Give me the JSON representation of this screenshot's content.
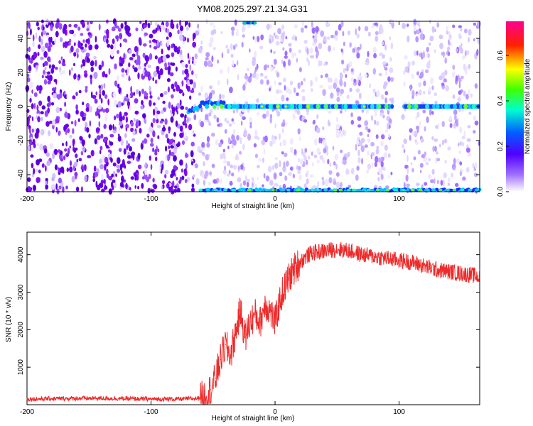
{
  "figure_title": "YM08.2025.297.21.34.G31",
  "chart_data": [
    {
      "type": "heatmap",
      "title": "YM08.2025.297.21.34.G31",
      "xlabel": "Height of straight line (km)",
      "ylabel": "Frequency (Hz)",
      "xlim": [
        -200,
        165
      ],
      "ylim": [
        -50,
        50
      ],
      "xticks": [
        -200,
        -100,
        0,
        100
      ],
      "yticks": [
        -40,
        -20,
        0,
        20,
        40
      ],
      "colorbar": {
        "label": "Normalized spectral amplitude",
        "range": [
          0,
          0.75
        ],
        "ticks": [
          0,
          0.2,
          0.4,
          0.6
        ],
        "colors": [
          "#ffffff",
          "#8a2be2",
          "#0000ff",
          "#00ffff",
          "#00ff00",
          "#ffff00",
          "#ff0000",
          "#ff00aa"
        ]
      },
      "features": [
        {
          "name": "carrier line",
          "frequency_hz": 0,
          "x_start": -70,
          "x_end": 165,
          "gap": [
            95,
            103
          ]
        },
        {
          "name": "lower edge band",
          "frequency_hz": -49,
          "x_start": -60,
          "x_end": 165
        },
        {
          "name": "upper edge fragment",
          "frequency_hz": 49,
          "x_start": -25,
          "x_end": -15
        },
        {
          "name": "dense noise region",
          "x_start": -200,
          "x_end": -65
        },
        {
          "name": "blank vertical gap",
          "x_start": 95,
          "x_end": 103
        }
      ]
    },
    {
      "type": "line",
      "title": "",
      "xlabel": "Height of straight line (km)",
      "ylabel": "SNR (10 * v/v)",
      "xlim": [
        -200,
        165
      ],
      "ylim": [
        0,
        4600
      ],
      "xticks": [
        -200,
        -100,
        0,
        100
      ],
      "yticks": [
        1000,
        2000,
        3000,
        4000
      ],
      "color": "#ee2a2a",
      "series": [
        {
          "name": "SNR",
          "x": [
            -200,
            -180,
            -160,
            -140,
            -120,
            -100,
            -80,
            -65,
            -58,
            -52,
            -48,
            -44,
            -40,
            -36,
            -32,
            -28,
            -24,
            -20,
            -16,
            -12,
            -8,
            -4,
            0,
            5,
            10,
            15,
            20,
            25,
            30,
            40,
            50,
            60,
            70,
            80,
            90,
            100,
            110,
            120,
            130,
            140,
            150,
            160,
            165
          ],
          "y": [
            150,
            160,
            170,
            170,
            160,
            150,
            150,
            160,
            200,
            400,
            700,
            1200,
            1600,
            1300,
            1900,
            2500,
            1800,
            2200,
            2400,
            2200,
            2700,
            2500,
            2200,
            2900,
            3300,
            3600,
            3800,
            3950,
            4050,
            4100,
            4150,
            4100,
            4000,
            3950,
            3900,
            3850,
            3800,
            3700,
            3600,
            3550,
            3500,
            3450,
            3400
          ]
        }
      ]
    }
  ]
}
